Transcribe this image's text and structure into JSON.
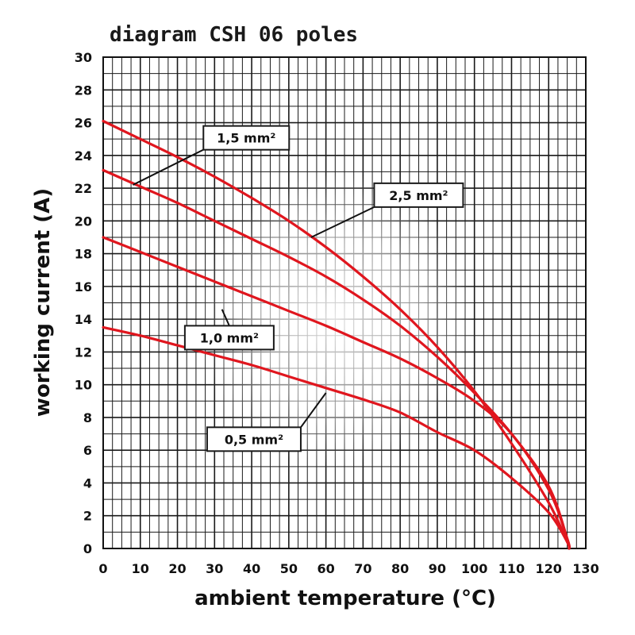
{
  "chart_data": {
    "type": "line",
    "title": "diagram CSH 06 poles",
    "xlabel": "ambient temperature (°C)",
    "ylabel": "working current (A)",
    "xlim": [
      0,
      130
    ],
    "ylim": [
      0,
      30
    ],
    "x_ticks": [
      "0",
      "10",
      "20",
      "30",
      "40",
      "50",
      "60",
      "70",
      "80",
      "90",
      "100",
      "110",
      "120",
      "130"
    ],
    "y_ticks": [
      "0",
      "2",
      "4",
      "6",
      "8",
      "10",
      "12",
      "14",
      "16",
      "18",
      "20",
      "22",
      "24",
      "26",
      "28",
      "30"
    ],
    "grid": true,
    "line_color": "#e0161e",
    "series": [
      {
        "name": "1,5 mm²",
        "x": [
          0,
          10,
          20,
          30,
          40,
          50,
          60,
          70,
          80,
          90,
          100,
          110,
          120,
          125,
          125.5
        ],
        "y": [
          26.1,
          25,
          23.9,
          22.7,
          21.4,
          20,
          18.4,
          16.6,
          14.6,
          12.3,
          9.6,
          6.4,
          2.8,
          0.4,
          0
        ]
      },
      {
        "name": "2,5 mm²",
        "x": [
          0,
          10,
          20,
          30,
          40,
          50,
          60,
          70,
          80,
          90,
          100,
          110,
          120,
          125,
          125.5
        ],
        "y": [
          23.1,
          22.1,
          21.1,
          20,
          18.9,
          17.8,
          16.6,
          15.2,
          13.6,
          11.7,
          9.5,
          7,
          3.8,
          0.6,
          0
        ]
      },
      {
        "name": "1,0 mm²",
        "x": [
          0,
          10,
          20,
          30,
          40,
          50,
          60,
          70,
          80,
          90,
          100,
          110,
          120,
          125,
          125.5
        ],
        "y": [
          19,
          18.1,
          17.2,
          16.3,
          15.4,
          14.5,
          13.6,
          12.6,
          11.6,
          10.4,
          9,
          7,
          3.6,
          0.6,
          0
        ]
      },
      {
        "name": "0,5 mm²",
        "x": [
          0,
          10,
          20,
          30,
          40,
          50,
          60,
          70,
          80,
          90,
          100,
          110,
          120,
          125,
          125.5
        ],
        "y": [
          13.5,
          13,
          12.4,
          11.8,
          11.2,
          10.5,
          9.8,
          9.1,
          8.3,
          7.1,
          6,
          4.3,
          2.2,
          0.4,
          0
        ]
      }
    ],
    "annotations": [
      {
        "text": "1,5 mm²",
        "series": "1,5 mm²"
      },
      {
        "text": "2,5 mm²",
        "series": "2,5 mm²"
      },
      {
        "text": "1,0 mm²",
        "series": "1,0 mm²"
      },
      {
        "text": "0,5 mm²",
        "series": "0,5 mm²"
      }
    ]
  }
}
